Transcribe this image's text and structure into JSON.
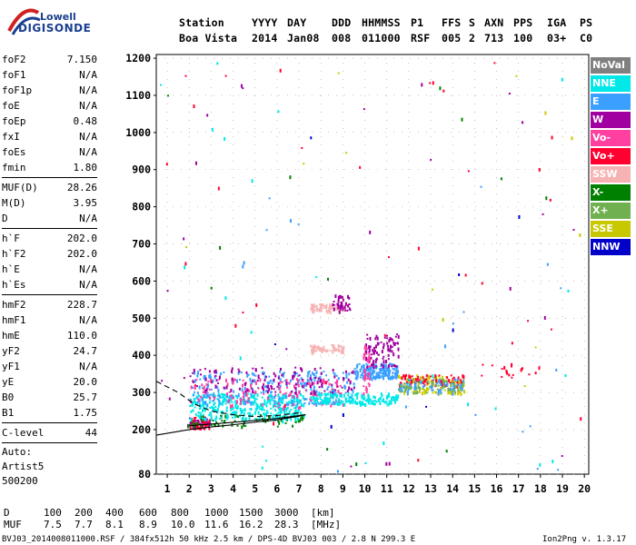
{
  "logo": {
    "line1": "Lowell",
    "line2": "DIGISONDE"
  },
  "header": {
    "labels": [
      "Station",
      "YYYY",
      "DAY",
      "DDD",
      "HHMMSS",
      "P1",
      "FFS",
      "S",
      "AXN",
      "PPS",
      "IGA",
      "PS"
    ],
    "values": [
      "Boa Vista",
      "2014",
      "Jan08",
      "008",
      "011000",
      "RSF",
      "005",
      "2",
      "713",
      "100",
      "03+",
      "C0"
    ]
  },
  "params": {
    "group1": [
      {
        "k": "foF2",
        "v": "7.150"
      },
      {
        "k": "foF1",
        "v": "N/A"
      },
      {
        "k": "foF1p",
        "v": "N/A"
      },
      {
        "k": "foE",
        "v": "N/A"
      },
      {
        "k": "foEp",
        "v": "0.48"
      },
      {
        "k": "fxI",
        "v": "N/A"
      },
      {
        "k": "foEs",
        "v": "N/A"
      },
      {
        "k": "fmin",
        "v": "1.80"
      }
    ],
    "group2": [
      {
        "k": "MUF(D)",
        "v": "28.26"
      },
      {
        "k": "M(D)",
        "v": "3.95"
      },
      {
        "k": "D",
        "v": "N/A"
      }
    ],
    "group3": [
      {
        "k": "h`F",
        "v": "202.0"
      },
      {
        "k": "h`F2",
        "v": "202.0"
      },
      {
        "k": "h`E",
        "v": "N/A"
      },
      {
        "k": "h`Es",
        "v": "N/A"
      }
    ],
    "group4": [
      {
        "k": "hmF2",
        "v": "228.7"
      },
      {
        "k": "hmF1",
        "v": "N/A"
      },
      {
        "k": "hmE",
        "v": "110.0"
      },
      {
        "k": "yF2",
        "v": "24.7"
      },
      {
        "k": "yF1",
        "v": "N/A"
      },
      {
        "k": "yE",
        "v": "20.0"
      },
      {
        "k": "B0",
        "v": "25.7"
      },
      {
        "k": "B1",
        "v": "1.75"
      }
    ],
    "group5": [
      {
        "k": "C-level",
        "v": "44"
      }
    ],
    "auto": [
      "Auto:",
      "Artist5",
      "500200"
    ]
  },
  "legend": [
    {
      "label": "NoVal",
      "color": "#808080"
    },
    {
      "label": "NNE",
      "color": "#00e8e8"
    },
    {
      "label": "E",
      "color": "#3aa0ff"
    },
    {
      "label": "W",
      "color": "#a000a0"
    },
    {
      "label": "Vo-",
      "color": "#ff40a0"
    },
    {
      "label": "Vo+",
      "color": "#ff0030"
    },
    {
      "label": "SSW",
      "color": "#f7b3b3"
    },
    {
      "label": "X-",
      "color": "#008000"
    },
    {
      "label": "X+",
      "color": "#70b050"
    },
    {
      "label": "SSE",
      "color": "#c8c800"
    },
    {
      "label": "NNW",
      "color": "#0000c8"
    }
  ],
  "chart_data": {
    "type": "scatter",
    "xlabel": "",
    "ylabel": "",
    "xlim": [
      0.5,
      20.2
    ],
    "ylim": [
      80,
      1210
    ],
    "x_ticks": [
      1,
      2,
      3,
      4,
      5,
      6,
      7,
      8,
      9,
      10,
      11,
      12,
      13,
      14,
      15,
      16,
      17,
      18,
      19,
      20
    ],
    "y_ticks": [
      80,
      200,
      300,
      400,
      500,
      600,
      700,
      800,
      900,
      1000,
      1100,
      1200
    ],
    "grid": true,
    "traces": [
      {
        "name": "profile",
        "style": "solid",
        "points": [
          [
            0.5,
            185
          ],
          [
            2,
            200
          ],
          [
            3,
            207
          ],
          [
            4,
            213
          ],
          [
            5,
            220
          ],
          [
            6,
            226
          ],
          [
            7,
            236
          ],
          [
            7.3,
            240
          ],
          [
            6,
            230
          ],
          [
            4.5,
            222
          ],
          [
            3,
            215
          ],
          [
            2,
            210
          ]
        ]
      },
      {
        "name": "upper",
        "style": "dashed",
        "points": [
          [
            0.5,
            330
          ],
          [
            1.5,
            300
          ],
          [
            2.2,
            270
          ],
          [
            3,
            250
          ],
          [
            4,
            240
          ],
          [
            5,
            235
          ],
          [
            6,
            238
          ],
          [
            7,
            245
          ]
        ]
      }
    ],
    "clusters": [
      {
        "x": [
          1.9,
          2.9
        ],
        "y": [
          205,
          235
        ],
        "color": "#a000a0",
        "n": 50
      },
      {
        "x": [
          1.9,
          2.9
        ],
        "y": [
          205,
          235
        ],
        "color": "#ff0030",
        "n": 30
      },
      {
        "x": [
          1.9,
          7.2
        ],
        "y": [
          210,
          245
        ],
        "color": "#008000",
        "n": 70
      },
      {
        "x": [
          2.0,
          7.2
        ],
        "y": [
          230,
          300
        ],
        "color": "#00e8e8",
        "n": 360
      },
      {
        "x": [
          2.0,
          9.5
        ],
        "y": [
          270,
          360
        ],
        "color": "#3aa0ff",
        "n": 260
      },
      {
        "x": [
          2.0,
          9.0
        ],
        "y": [
          260,
          340
        ],
        "color": "#ff40a0",
        "n": 140
      },
      {
        "x": [
          2.0,
          9.5
        ],
        "y": [
          300,
          370
        ],
        "color": "#a000a0",
        "n": 120
      },
      {
        "x": [
          7.5,
          11.5
        ],
        "y": [
          270,
          300
        ],
        "color": "#00e8e8",
        "n": 160
      },
      {
        "x": [
          9.5,
          11.5
        ],
        "y": [
          340,
          380
        ],
        "color": "#3aa0ff",
        "n": 160
      },
      {
        "x": [
          10,
          11.5
        ],
        "y": [
          370,
          460
        ],
        "color": "#a000a0",
        "n": 90
      },
      {
        "x": [
          9.9,
          10.2
        ],
        "y": [
          300,
          430
        ],
        "color": "#ff40a0",
        "n": 40
      },
      {
        "x": [
          11.5,
          14.5
        ],
        "y": [
          300,
          350
        ],
        "color": "#c8c800",
        "n": 110
      },
      {
        "x": [
          11.5,
          14.5
        ],
        "y": [
          320,
          350
        ],
        "color": "#ff0030",
        "n": 60
      },
      {
        "x": [
          11.5,
          14.5
        ],
        "y": [
          300,
          340
        ],
        "color": "#70b050",
        "n": 60
      },
      {
        "x": [
          11.5,
          14.5
        ],
        "y": [
          300,
          340
        ],
        "color": "#3aa0ff",
        "n": 50
      },
      {
        "x": [
          7.5,
          9
        ],
        "y": [
          410,
          430
        ],
        "color": "#f7b3b3",
        "n": 60
      },
      {
        "x": [
          7.5,
          9
        ],
        "y": [
          520,
          540
        ],
        "color": "#f7b3b3",
        "n": 60
      },
      {
        "x": [
          8.5,
          9.3
        ],
        "y": [
          520,
          565
        ],
        "color": "#a000a0",
        "n": 35
      },
      {
        "x": [
          15,
          18
        ],
        "y": [
          340,
          380
        ],
        "color": "#ff0030",
        "n": 18
      },
      {
        "x": [
          0.5,
          20
        ],
        "y": [
          80,
          1200
        ],
        "color": "#ff0030",
        "n": 35
      },
      {
        "x": [
          0.5,
          20
        ],
        "y": [
          80,
          1200
        ],
        "color": "#a000a0",
        "n": 25
      },
      {
        "x": [
          0.5,
          20
        ],
        "y": [
          80,
          1200
        ],
        "color": "#00e8e8",
        "n": 25
      },
      {
        "x": [
          0.5,
          20
        ],
        "y": [
          80,
          1200
        ],
        "color": "#3aa0ff",
        "n": 20
      },
      {
        "x": [
          0.5,
          20
        ],
        "y": [
          80,
          1200
        ],
        "color": "#c8c800",
        "n": 12
      },
      {
        "x": [
          0.5,
          20
        ],
        "y": [
          80,
          1200
        ],
        "color": "#008000",
        "n": 12
      },
      {
        "x": [
          0.5,
          20
        ],
        "y": [
          80,
          1200
        ],
        "color": "#0000c8",
        "n": 8
      }
    ]
  },
  "footer": {
    "d_label": "D",
    "d_values": [
      "100",
      "200",
      "400",
      "600",
      "800",
      "1000",
      "1500",
      "3000",
      "[km]"
    ],
    "muf_label": "MUF",
    "muf_values": [
      "7.5",
      "7.7",
      "8.1",
      "8.9",
      "10.0",
      "11.6",
      "16.2",
      "28.3",
      "[MHz]"
    ],
    "file_info": "BVJ03_2014008011000.RSF / 384fx512h 50 kHz 2.5 km / DPS-4D BVJ03 003 / 2.8 N 299.3 E",
    "version": "Ion2Png v. 1.3.17"
  }
}
